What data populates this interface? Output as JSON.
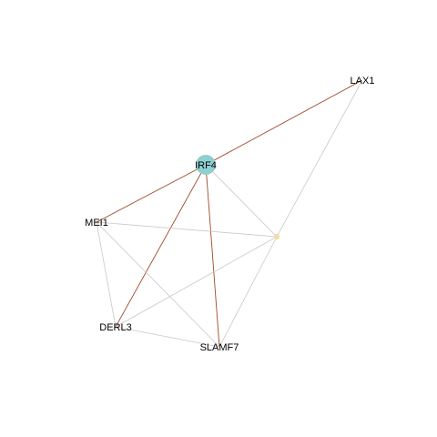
{
  "graph": {
    "nodes": [
      {
        "id": "IRF4",
        "label": "IRF4",
        "color": "#8ecfcf",
        "size": "large"
      },
      {
        "id": "LAX1",
        "label": "LAX1",
        "color": "#ffffff",
        "size": "none"
      },
      {
        "id": "MEI1",
        "label": "MEI1",
        "color": "#ffffff",
        "size": "none"
      },
      {
        "id": "DERL3",
        "label": "DERL3",
        "color": "#ffffff",
        "size": "none"
      },
      {
        "id": "SLAMF7",
        "label": "SLAMF7",
        "color": "#ffffff",
        "size": "none"
      },
      {
        "id": "unlabeled",
        "label": "",
        "color": "#f2dca8",
        "size": "small"
      }
    ],
    "edges": [
      {
        "source": "IRF4",
        "target": "LAX1",
        "kind": "highlight"
      },
      {
        "source": "IRF4",
        "target": "MEI1",
        "kind": "highlight"
      },
      {
        "source": "IRF4",
        "target": "DERL3",
        "kind": "highlight"
      },
      {
        "source": "IRF4",
        "target": "SLAMF7",
        "kind": "highlight"
      },
      {
        "source": "IRF4",
        "target": "unlabeled",
        "kind": "normal"
      },
      {
        "source": "LAX1",
        "target": "unlabeled",
        "kind": "normal"
      },
      {
        "source": "MEI1",
        "target": "unlabeled",
        "kind": "normal"
      },
      {
        "source": "MEI1",
        "target": "DERL3",
        "kind": "normal"
      },
      {
        "source": "MEI1",
        "target": "SLAMF7",
        "kind": "normal"
      },
      {
        "source": "DERL3",
        "target": "SLAMF7",
        "kind": "normal"
      },
      {
        "source": "DERL3",
        "target": "unlabeled",
        "kind": "normal"
      },
      {
        "source": "SLAMF7",
        "target": "unlabeled",
        "kind": "normal"
      }
    ],
    "colors": {
      "highlight_edge": "#a0482a",
      "normal_edge": "#c8c8c8",
      "label": "#000000"
    }
  }
}
